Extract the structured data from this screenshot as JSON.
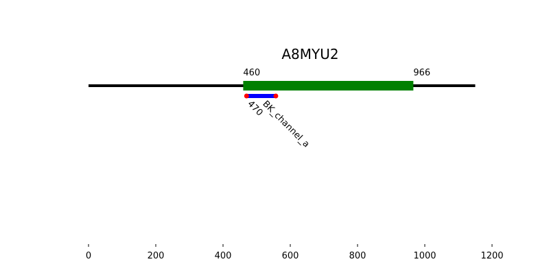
{
  "chart_data": {
    "type": "protein-domain-map",
    "title": "A8MYU2",
    "sequence_length": 1150,
    "xlim": [
      0,
      1200
    ],
    "xticks": [
      0,
      200,
      400,
      600,
      800,
      1000,
      1200
    ],
    "region": {
      "start": 460,
      "end": 966,
      "start_label": "460",
      "end_label": "966",
      "color": "#008000"
    },
    "domain": {
      "name": "BK_channel_a",
      "start": 470,
      "end": 557,
      "start_label": "470",
      "color": "#0000ff",
      "endpoint_color": "#ff0000"
    },
    "backbone_color": "#000000",
    "grid": false,
    "legend": "none"
  }
}
